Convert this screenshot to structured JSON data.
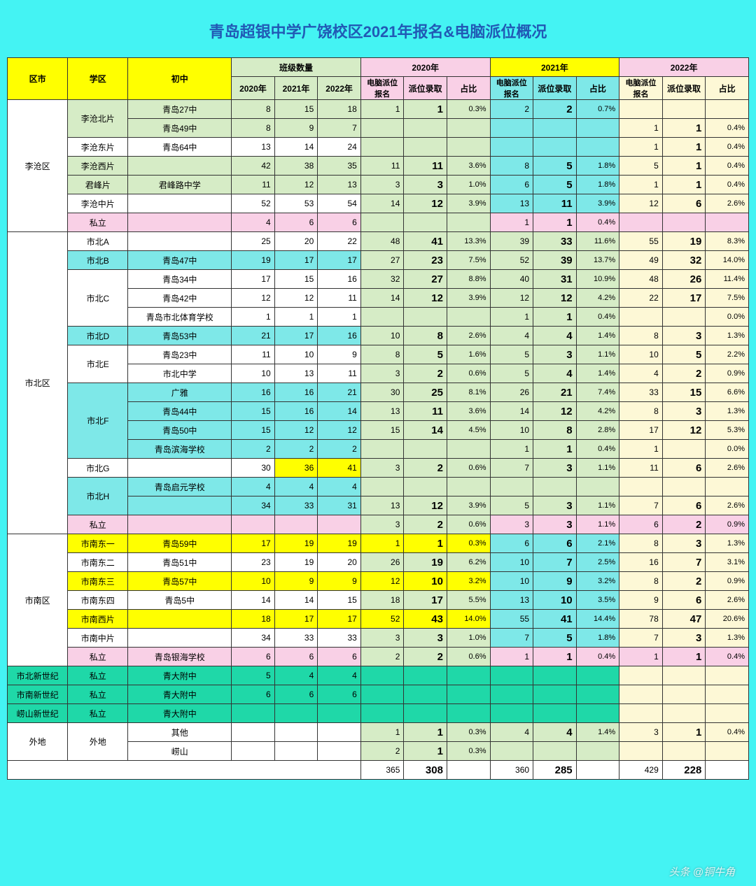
{
  "title": "青岛超银中学广饶校区2021年报名&电脑派位概况",
  "watermark": "头条 @铜牛角",
  "colors": {
    "bg_page": "#44f3f3",
    "hdr_yellow": "#ffff00",
    "hdr_green": "#d6ecc6",
    "hdr_pink": "#f9d0e6",
    "hdr_cyan": "#7ee8e8",
    "hdr_cream": "#fdf8d6",
    "row_green": "#d6ecc6",
    "row_cyan": "#7ee8e8",
    "row_pink": "#f9d0e6",
    "row_yellow": "#ffff00",
    "row_teal": "#1fd8a8",
    "row_white": "#ffffff",
    "blank_cyan": "#7ee8e8",
    "blank_cream": "#fdf8d6",
    "blank_green": "#d6ecc6",
    "blank_pink": "#f9d0e6"
  },
  "headers": {
    "district": "区市",
    "zone": "学区",
    "school": "初中",
    "class_count": "班级数量",
    "y2020": "2020年",
    "y2021": "2021年",
    "y2022": "2022年",
    "subs": {
      "c2020": "2020年",
      "c2021": "2021年",
      "c2022": "2022年",
      "apply": "电脑派位报名",
      "admit": "派位录取",
      "pct": "占比"
    }
  },
  "rows": [
    {
      "zrow": "green",
      "district": "李沧区",
      "dspan": 7,
      "zone": "李沧北片",
      "zspan": 2,
      "school": "青岛27中",
      "c": [
        8,
        15,
        18
      ],
      "y20": [
        1,
        "1",
        "0.3%"
      ],
      "y21": [
        2,
        "2",
        "0.7%"
      ],
      "y22": [
        "",
        "",
        ""
      ],
      "y21bg": "cyan",
      "y22bg": "cream_blank"
    },
    {
      "zrow": "green",
      "school": "青岛49中",
      "c": [
        8,
        9,
        7
      ],
      "y20": [
        "",
        "",
        ""
      ],
      "y21": [
        "",
        "",
        ""
      ],
      "y22": [
        1,
        "1",
        "0.4%"
      ],
      "y21bg": "cyan_blank",
      "y22bg": "cream"
    },
    {
      "zrow": "white",
      "zone": "李沧东片",
      "zspan": 1,
      "school": "青岛64中",
      "c": [
        13,
        14,
        24
      ],
      "y20": [
        "",
        "",
        ""
      ],
      "y21": [
        "",
        "",
        ""
      ],
      "y22": [
        1,
        "1",
        "0.4%"
      ],
      "y21bg": "cyan_blank",
      "y22bg": "cream"
    },
    {
      "zrow": "green",
      "zone": "李沧西片",
      "zspan": 1,
      "school": "",
      "c": [
        42,
        38,
        35
      ],
      "y20": [
        11,
        "11",
        "3.6%"
      ],
      "y21": [
        8,
        "5",
        "1.8%"
      ],
      "y22": [
        5,
        "1",
        "0.4%"
      ],
      "y21bg": "cyan",
      "y22bg": "cream"
    },
    {
      "zrow": "green",
      "zone": "君峰片",
      "zspan": 1,
      "school": "君峰路中学",
      "c": [
        11,
        12,
        13
      ],
      "y20": [
        3,
        "3",
        "1.0%"
      ],
      "y21": [
        6,
        "5",
        "1.8%"
      ],
      "y22": [
        1,
        "1",
        "0.4%"
      ],
      "y21bg": "cyan",
      "y22bg": "cream"
    },
    {
      "zrow": "white",
      "zone": "李沧中片",
      "zspan": 1,
      "school": "",
      "c": [
        52,
        53,
        54
      ],
      "y20": [
        14,
        "12",
        "3.9%"
      ],
      "y21": [
        13,
        "11",
        "3.9%"
      ],
      "y22": [
        12,
        "6",
        "2.6%"
      ],
      "y21bg": "cyan",
      "y22bg": "cream"
    },
    {
      "zrow": "pink",
      "zone": "私立",
      "zspan": 1,
      "school": "",
      "c": [
        4,
        6,
        6
      ],
      "y20": [
        "",
        "",
        ""
      ],
      "y21": [
        1,
        "1",
        "0.4%"
      ],
      "y22": [
        "",
        "",
        ""
      ],
      "y21bg": "pink",
      "y22bg": "pink_blank"
    },
    {
      "zrow": "white",
      "district": "市北区",
      "dspan": 16,
      "zone": "市北A",
      "zspan": 1,
      "school": "",
      "c": [
        25,
        20,
        22
      ],
      "y20": [
        48,
        "41",
        "13.3%"
      ],
      "y21": [
        39,
        "33",
        "11.6%"
      ],
      "y22": [
        55,
        "19",
        "8.3%"
      ],
      "y21bg": "green",
      "y22bg": "cream"
    },
    {
      "zrow": "cyan",
      "zone": "市北B",
      "zspan": 1,
      "school": "青岛47中",
      "c": [
        19,
        17,
        17
      ],
      "y20": [
        27,
        "23",
        "7.5%"
      ],
      "y21": [
        52,
        "39",
        "13.7%"
      ],
      "y22": [
        49,
        "32",
        "14.0%"
      ],
      "y21bg": "green",
      "y22bg": "cream"
    },
    {
      "zrow": "white",
      "zone": "市北C",
      "zspan": 3,
      "school": "青岛34中",
      "c": [
        17,
        15,
        16
      ],
      "y20": [
        32,
        "27",
        "8.8%"
      ],
      "y21": [
        40,
        "31",
        "10.9%"
      ],
      "y22": [
        48,
        "26",
        "11.4%"
      ],
      "y21bg": "green",
      "y22bg": "cream"
    },
    {
      "zrow": "white",
      "school": "青岛42中",
      "c": [
        12,
        12,
        11
      ],
      "y20": [
        14,
        "12",
        "3.9%"
      ],
      "y21": [
        12,
        "12",
        "4.2%"
      ],
      "y22": [
        22,
        "17",
        "7.5%"
      ],
      "y21bg": "green",
      "y22bg": "cream"
    },
    {
      "zrow": "white",
      "school": "青岛市北体育学校",
      "c": [
        1,
        1,
        1
      ],
      "y20": [
        "",
        "",
        ""
      ],
      "y21": [
        1,
        "1",
        "0.4%"
      ],
      "y22": [
        "",
        "",
        "0.0%"
      ],
      "y21bg": "green",
      "y22bg": "cream"
    },
    {
      "zrow": "cyan",
      "zone": "市北D",
      "zspan": 1,
      "school": "青岛53中",
      "c": [
        21,
        17,
        16
      ],
      "y20": [
        10,
        "8",
        "2.6%"
      ],
      "y21": [
        4,
        "4",
        "1.4%"
      ],
      "y22": [
        8,
        "3",
        "1.3%"
      ],
      "y21bg": "green",
      "y22bg": "cream"
    },
    {
      "zrow": "white",
      "zone": "市北E",
      "zspan": 2,
      "school": "青岛23中",
      "c": [
        11,
        10,
        9
      ],
      "y20": [
        8,
        "5",
        "1.6%"
      ],
      "y21": [
        5,
        "3",
        "1.1%"
      ],
      "y22": [
        10,
        "5",
        "2.2%"
      ],
      "y21bg": "green",
      "y22bg": "cream"
    },
    {
      "zrow": "white",
      "school": "市北中学",
      "c": [
        10,
        13,
        11
      ],
      "y20": [
        3,
        "2",
        "0.6%"
      ],
      "y21": [
        5,
        "4",
        "1.4%"
      ],
      "y22": [
        4,
        "2",
        "0.9%"
      ],
      "y21bg": "green",
      "y22bg": "cream"
    },
    {
      "zrow": "cyan",
      "zone": "市北F",
      "zspan": 4,
      "school": "广雅",
      "c": [
        16,
        16,
        21
      ],
      "y20": [
        30,
        "25",
        "8.1%"
      ],
      "y21": [
        26,
        "21",
        "7.4%"
      ],
      "y22": [
        33,
        "15",
        "6.6%"
      ],
      "y21bg": "green",
      "y22bg": "cream"
    },
    {
      "zrow": "cyan",
      "school": "青岛44中",
      "c": [
        15,
        16,
        14
      ],
      "y20": [
        13,
        "11",
        "3.6%"
      ],
      "y21": [
        14,
        "12",
        "4.2%"
      ],
      "y22": [
        8,
        "3",
        "1.3%"
      ],
      "y21bg": "green",
      "y22bg": "cream"
    },
    {
      "zrow": "cyan",
      "school": "青岛50中",
      "c": [
        15,
        12,
        12
      ],
      "y20": [
        15,
        "14",
        "4.5%"
      ],
      "y21": [
        10,
        "8",
        "2.8%"
      ],
      "y22": [
        17,
        "12",
        "5.3%"
      ],
      "y21bg": "green",
      "y22bg": "cream"
    },
    {
      "zrow": "cyan",
      "school": "青岛滨海学校",
      "c": [
        2,
        2,
        2
      ],
      "y20": [
        "",
        "",
        ""
      ],
      "y21": [
        1,
        "1",
        "0.4%"
      ],
      "y22": [
        1,
        "",
        "0.0%"
      ],
      "y21bg": "green",
      "y22bg": "cream"
    },
    {
      "zrow": "white",
      "zone": "市北G",
      "zspan": 1,
      "school": "",
      "c": [
        30,
        36,
        41
      ],
      "y20": [
        3,
        "2",
        "0.6%"
      ],
      "y21": [
        7,
        "3",
        "1.1%"
      ],
      "y22": [
        11,
        "6",
        "2.6%"
      ],
      "y21bg": "green",
      "y22bg": "cream",
      "chl": [
        false,
        true,
        true
      ]
    },
    {
      "zrow": "cyan",
      "zone": "市北H",
      "zspan": 2,
      "school": "青岛启元学校",
      "c": [
        4,
        4,
        4
      ],
      "y20": [
        "",
        "",
        ""
      ],
      "y21": [
        "",
        "",
        ""
      ],
      "y22": [
        "",
        "",
        ""
      ],
      "y21bg": "green_blank",
      "y22bg": "cream_blank"
    },
    {
      "zrow": "cyan",
      "school": "",
      "c": [
        34,
        33,
        31
      ],
      "y20": [
        13,
        "12",
        "3.9%"
      ],
      "y21": [
        5,
        "3",
        "1.1%"
      ],
      "y22": [
        7,
        "6",
        "2.6%"
      ],
      "y21bg": "green",
      "y22bg": "cream"
    },
    {
      "zrow": "pink",
      "zone": "私立",
      "zspan": 1,
      "school": "",
      "c": [
        "",
        "",
        ""
      ],
      "y20": [
        3,
        "2",
        "0.6%"
      ],
      "y21": [
        3,
        "3",
        "1.1%"
      ],
      "y22": [
        6,
        "2",
        "0.9%"
      ],
      "y21bg": "pink",
      "y22bg": "pink"
    },
    {
      "zrow": "yellow",
      "district": "市南区",
      "dspan": 7,
      "zone": "市南东一",
      "zspan": 1,
      "school": "青岛59中",
      "c": [
        17,
        19,
        19
      ],
      "y20": [
        1,
        "1",
        "0.3%"
      ],
      "y21": [
        6,
        "6",
        "2.1%"
      ],
      "y22": [
        8,
        "3",
        "1.3%"
      ],
      "y21bg": "cyan",
      "y22bg": "cream",
      "y20hl": true
    },
    {
      "zrow": "white",
      "zone": "市南东二",
      "zspan": 1,
      "school": "青岛51中",
      "c": [
        23,
        19,
        20
      ],
      "y20": [
        26,
        "19",
        "6.2%"
      ],
      "y21": [
        10,
        "7",
        "2.5%"
      ],
      "y22": [
        16,
        "7",
        "3.1%"
      ],
      "y21bg": "cyan",
      "y22bg": "cream"
    },
    {
      "zrow": "yellow",
      "zone": "市南东三",
      "zspan": 1,
      "school": "青岛57中",
      "c": [
        10,
        9,
        9
      ],
      "y20": [
        12,
        "10",
        "3.2%"
      ],
      "y21": [
        10,
        "9",
        "3.2%"
      ],
      "y22": [
        8,
        "2",
        "0.9%"
      ],
      "y21bg": "cyan",
      "y22bg": "cream",
      "y20hl": true
    },
    {
      "zrow": "white",
      "zone": "市南东四",
      "zspan": 1,
      "school": "青岛5中",
      "c": [
        14,
        14,
        15
      ],
      "y20": [
        18,
        "17",
        "5.5%"
      ],
      "y21": [
        13,
        "10",
        "3.5%"
      ],
      "y22": [
        9,
        "6",
        "2.6%"
      ],
      "y21bg": "cyan",
      "y22bg": "cream"
    },
    {
      "zrow": "yellow",
      "zone": "市南西片",
      "zspan": 1,
      "school": "",
      "c": [
        18,
        17,
        17
      ],
      "y20": [
        52,
        "43",
        "14.0%"
      ],
      "y21": [
        55,
        "41",
        "14.4%"
      ],
      "y22": [
        78,
        "47",
        "20.6%"
      ],
      "y21bg": "cyan",
      "y22bg": "cream",
      "y20hl": true
    },
    {
      "zrow": "white",
      "zone": "市南中片",
      "zspan": 1,
      "school": "",
      "c": [
        34,
        33,
        33
      ],
      "y20": [
        3,
        "3",
        "1.0%"
      ],
      "y21": [
        7,
        "5",
        "1.8%"
      ],
      "y22": [
        7,
        "3",
        "1.3%"
      ],
      "y21bg": "cyan",
      "y22bg": "cream"
    },
    {
      "zrow": "pink",
      "zone": "私立",
      "zspan": 1,
      "school": "青岛银海学校",
      "c": [
        6,
        6,
        6
      ],
      "y20": [
        2,
        "2",
        "0.6%"
      ],
      "y21": [
        1,
        "1",
        "0.4%"
      ],
      "y22": [
        1,
        "1",
        "0.4%"
      ],
      "y21bg": "pink",
      "y22bg": "pink"
    },
    {
      "zrow": "teal",
      "district": "市北新世纪",
      "dspan": 1,
      "zone": "私立",
      "zspan": 1,
      "school": "青大附中",
      "c": [
        5,
        4,
        4
      ],
      "y20": [
        "",
        "",
        ""
      ],
      "y21": [
        "",
        "",
        ""
      ],
      "y22": [
        "",
        "",
        ""
      ],
      "y21bg": "teal_blank",
      "y22bg": "cream_blank",
      "y20bg": "teal_blank"
    },
    {
      "zrow": "teal",
      "district": "市南新世纪",
      "dspan": 1,
      "zone": "私立",
      "zspan": 1,
      "school": "青大附中",
      "c": [
        6,
        6,
        6
      ],
      "y20": [
        "",
        "",
        ""
      ],
      "y21": [
        "",
        "",
        ""
      ],
      "y22": [
        "",
        "",
        ""
      ],
      "y21bg": "teal_blank",
      "y22bg": "cream_blank",
      "y20bg": "teal_blank"
    },
    {
      "zrow": "teal",
      "district": "崂山新世纪",
      "dspan": 1,
      "zone": "私立",
      "zspan": 1,
      "school": "青大附中",
      "c": [
        "",
        "",
        ""
      ],
      "y20": [
        "",
        "",
        ""
      ],
      "y21": [
        "",
        "",
        ""
      ],
      "y22": [
        "",
        "",
        ""
      ],
      "y21bg": "teal_blank",
      "y22bg": "cream_blank",
      "y20bg": "teal_blank"
    },
    {
      "zrow": "white",
      "district": "外地",
      "dspan": 2,
      "zone": "外地",
      "zspan": 2,
      "school": "其他",
      "c": [
        "",
        "",
        ""
      ],
      "y20": [
        1,
        "1",
        "0.3%"
      ],
      "y21": [
        4,
        "4",
        "1.4%"
      ],
      "y22": [
        3,
        "1",
        "0.4%"
      ],
      "y21bg": "green",
      "y22bg": "cream"
    },
    {
      "zrow": "white",
      "school": "崂山",
      "c": [
        "",
        "",
        ""
      ],
      "y20": [
        2,
        "1",
        "0.3%"
      ],
      "y21": [
        "",
        "",
        ""
      ],
      "y22": [
        "",
        "",
        ""
      ],
      "y21bg": "green_blank",
      "y22bg": "cream_blank"
    }
  ],
  "totals": {
    "y20": [
      365,
      "308",
      ""
    ],
    "y21": [
      360,
      "285",
      ""
    ],
    "y22": [
      429,
      "228",
      ""
    ]
  }
}
